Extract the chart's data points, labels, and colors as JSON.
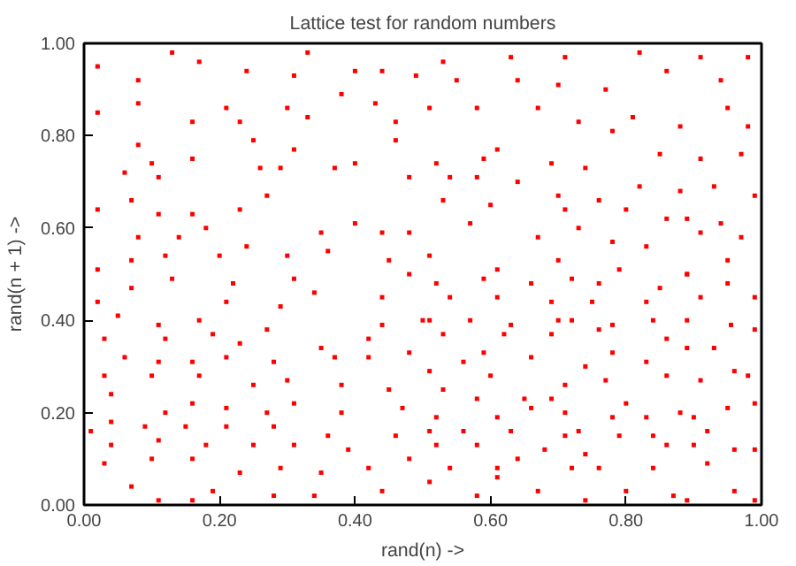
{
  "chart_data": {
    "type": "scatter",
    "title": "Lattice test for random numbers",
    "xlabel": "rand(n) ->",
    "ylabel": "rand(n + 1) ->",
    "xlim": [
      0,
      1
    ],
    "ylim": [
      0,
      1
    ],
    "xticks": [
      {
        "value": 0,
        "label": "0.00"
      },
      {
        "value": 0.2,
        "label": "0.20"
      },
      {
        "value": 0.4,
        "label": "0.40"
      },
      {
        "value": 0.6,
        "label": "0.60"
      },
      {
        "value": 0.8,
        "label": "0.80"
      },
      {
        "value": 1,
        "label": "1.00"
      }
    ],
    "yticks": [
      {
        "value": 0,
        "label": "0.00"
      },
      {
        "value": 0.2,
        "label": "0.20"
      },
      {
        "value": 0.4,
        "label": "0.40"
      },
      {
        "value": 0.6,
        "label": "0.60"
      },
      {
        "value": 0.8,
        "label": "0.80"
      },
      {
        "value": 1,
        "label": "1.00"
      }
    ],
    "grid": false,
    "marker": "square",
    "series": [
      {
        "color": "#ff0000",
        "x": [
          0.13,
          0.02,
          0.08,
          0.24,
          0.17,
          0.21,
          0.02,
          0.08,
          0.16,
          0.23,
          0.31,
          0.33,
          0.4,
          0.44,
          0.49,
          0.38,
          0.43,
          0.3,
          0.33,
          0.46,
          0.08,
          0.1,
          0.06,
          0.16,
          0.11,
          0.25,
          0.26,
          0.31,
          0.29,
          0.37,
          0.4,
          0.48,
          0.46,
          0.02,
          0.07,
          0.11,
          0.16,
          0.23,
          0.27,
          0.18,
          0.14,
          0.08,
          0.07,
          0.12,
          0.2,
          0.24,
          0.3,
          0.35,
          0.36,
          0.4,
          0.44,
          0.48,
          0.45,
          0.02,
          0.53,
          0.63,
          0.71,
          0.82,
          0.91,
          0.98,
          0.55,
          0.64,
          0.7,
          0.77,
          0.86,
          0.94,
          0.51,
          0.58,
          0.67,
          0.73,
          0.81,
          0.88,
          0.95,
          0.98,
          0.52,
          0.59,
          0.61,
          0.69,
          0.74,
          0.78,
          0.85,
          0.91,
          0.97,
          0.54,
          0.58,
          0.64,
          0.7,
          0.76,
          0.82,
          0.88,
          0.93,
          0.99,
          0.53,
          0.6,
          0.71,
          0.8,
          0.86,
          0.89,
          0.94,
          0.57,
          0.67,
          0.73,
          0.78,
          0.83,
          0.91,
          0.97,
          0.51,
          0.61,
          0.7,
          0.79,
          0.89,
          0.95,
          0.07,
          0.02,
          0.13,
          0.22,
          0.31,
          0.34,
          0.44,
          0.48,
          0.05,
          0.11,
          0.17,
          0.21,
          0.29,
          0.44,
          0.03,
          0.12,
          0.19,
          0.23,
          0.27,
          0.35,
          0.42,
          0.5,
          0.06,
          0.11,
          0.16,
          0.21,
          0.28,
          0.37,
          0.42,
          0.48,
          0.03,
          0.1,
          0.17,
          0.25,
          0.3,
          0.38,
          0.45,
          0.04,
          0.12,
          0.16,
          0.21,
          0.27,
          0.31,
          0.38,
          0.47,
          0.01,
          0.04,
          0.09,
          0.15,
          0.21,
          0.28,
          0.36,
          0.46,
          0.04,
          0.11,
          0.18,
          0.25,
          0.31,
          0.39,
          0.03,
          0.1,
          0.16,
          0.23,
          0.29,
          0.35,
          0.42,
          0.48,
          0.07,
          0.11,
          0.19,
          0.28,
          0.34,
          0.44,
          0.16,
          0.52,
          0.59,
          0.66,
          0.72,
          0.76,
          0.85,
          0.89,
          0.95,
          0.54,
          0.61,
          0.69,
          0.75,
          0.83,
          0.91,
          0.99,
          0.51,
          0.57,
          0.63,
          0.7,
          0.72,
          0.78,
          0.84,
          0.89,
          0.955,
          0.53,
          0.59,
          0.62,
          0.69,
          0.76,
          0.86,
          0.93,
          0.99,
          0.56,
          0.66,
          0.74,
          0.78,
          0.83,
          0.89,
          0.96,
          0.51,
          0.6,
          0.71,
          0.77,
          0.86,
          0.91,
          0.98,
          0.53,
          0.58,
          0.65,
          0.69,
          0.8,
          0.88,
          0.95,
          0.52,
          0.61,
          0.66,
          0.71,
          0.78,
          0.83,
          0.9,
          0.99,
          0.51,
          0.56,
          0.63,
          0.71,
          0.73,
          0.84,
          0.92,
          0.52,
          0.58,
          0.64,
          0.68,
          0.74,
          0.79,
          0.86,
          0.9,
          0.96,
          0.54,
          0.61,
          0.72,
          0.76,
          0.84,
          0.92,
          0.99,
          0.51,
          0.58,
          0.61,
          0.67,
          0.74,
          0.8,
          0.87,
          0.89,
          0.96,
          0.99
        ],
        "values": [
          0.98,
          0.95,
          0.92,
          0.94,
          0.96,
          0.86,
          0.85,
          0.87,
          0.83,
          0.83,
          0.93,
          0.98,
          0.94,
          0.94,
          0.93,
          0.89,
          0.87,
          0.86,
          0.84,
          0.83,
          0.78,
          0.74,
          0.72,
          0.75,
          0.71,
          0.79,
          0.73,
          0.77,
          0.73,
          0.73,
          0.74,
          0.71,
          0.79,
          0.64,
          0.66,
          0.63,
          0.63,
          0.64,
          0.67,
          0.6,
          0.58,
          0.58,
          0.53,
          0.54,
          0.54,
          0.56,
          0.54,
          0.59,
          0.55,
          0.61,
          0.59,
          0.59,
          0.53,
          0.51,
          0.96,
          0.97,
          0.97,
          0.98,
          0.97,
          0.97,
          0.92,
          0.92,
          0.91,
          0.9,
          0.94,
          0.92,
          0.86,
          0.86,
          0.86,
          0.83,
          0.84,
          0.82,
          0.86,
          0.82,
          0.74,
          0.75,
          0.77,
          0.74,
          0.73,
          0.81,
          0.76,
          0.75,
          0.76,
          0.71,
          0.71,
          0.7,
          0.67,
          0.66,
          0.69,
          0.68,
          0.69,
          0.67,
          0.66,
          0.65,
          0.64,
          0.64,
          0.62,
          0.62,
          0.61,
          0.61,
          0.58,
          0.6,
          0.57,
          0.56,
          0.59,
          0.58,
          0.54,
          0.51,
          0.53,
          0.51,
          0.5,
          0.53,
          0.47,
          0.44,
          0.49,
          0.48,
          0.49,
          0.46,
          0.45,
          0.5,
          0.41,
          0.39,
          0.4,
          0.44,
          0.43,
          0.39,
          0.36,
          0.36,
          0.37,
          0.35,
          0.38,
          0.34,
          0.36,
          0.4,
          0.32,
          0.31,
          0.31,
          0.32,
          0.31,
          0.32,
          0.32,
          0.33,
          0.28,
          0.28,
          0.28,
          0.26,
          0.27,
          0.26,
          0.25,
          0.24,
          0.2,
          0.22,
          0.21,
          0.2,
          0.22,
          0.2,
          0.21,
          0.16,
          0.18,
          0.17,
          0.17,
          0.17,
          0.17,
          0.15,
          0.15,
          0.13,
          0.14,
          0.13,
          0.13,
          0.13,
          0.12,
          0.09,
          0.1,
          0.1,
          0.07,
          0.08,
          0.07,
          0.08,
          0.1,
          0.04,
          0.01,
          0.03,
          0.02,
          0.02,
          0.03,
          0.01,
          0.48,
          0.49,
          0.48,
          0.49,
          0.48,
          0.47,
          0.5,
          0.48,
          0.45,
          0.45,
          0.44,
          0.44,
          0.44,
          0.45,
          0.45,
          0.4,
          0.4,
          0.39,
          0.4,
          0.4,
          0.39,
          0.4,
          0.4,
          0.39,
          0.37,
          0.33,
          0.37,
          0.37,
          0.38,
          0.36,
          0.34,
          0.38,
          0.31,
          0.32,
          0.3,
          0.33,
          0.31,
          0.34,
          0.29,
          0.29,
          0.28,
          0.26,
          0.27,
          0.28,
          0.27,
          0.28,
          0.25,
          0.23,
          0.23,
          0.23,
          0.22,
          0.2,
          0.21,
          0.19,
          0.19,
          0.21,
          0.2,
          0.19,
          0.19,
          0.19,
          0.22,
          0.16,
          0.16,
          0.16,
          0.15,
          0.16,
          0.15,
          0.16,
          0.13,
          0.13,
          0.1,
          0.12,
          0.11,
          0.15,
          0.13,
          0.13,
          0.12,
          0.08,
          0.08,
          0.08,
          0.08,
          0.08,
          0.09,
          0.12,
          0.05,
          0.02,
          0.06,
          0.03,
          0.01,
          0.03,
          0.02,
          0.01,
          0.03,
          0.01
        ]
      }
    ]
  }
}
